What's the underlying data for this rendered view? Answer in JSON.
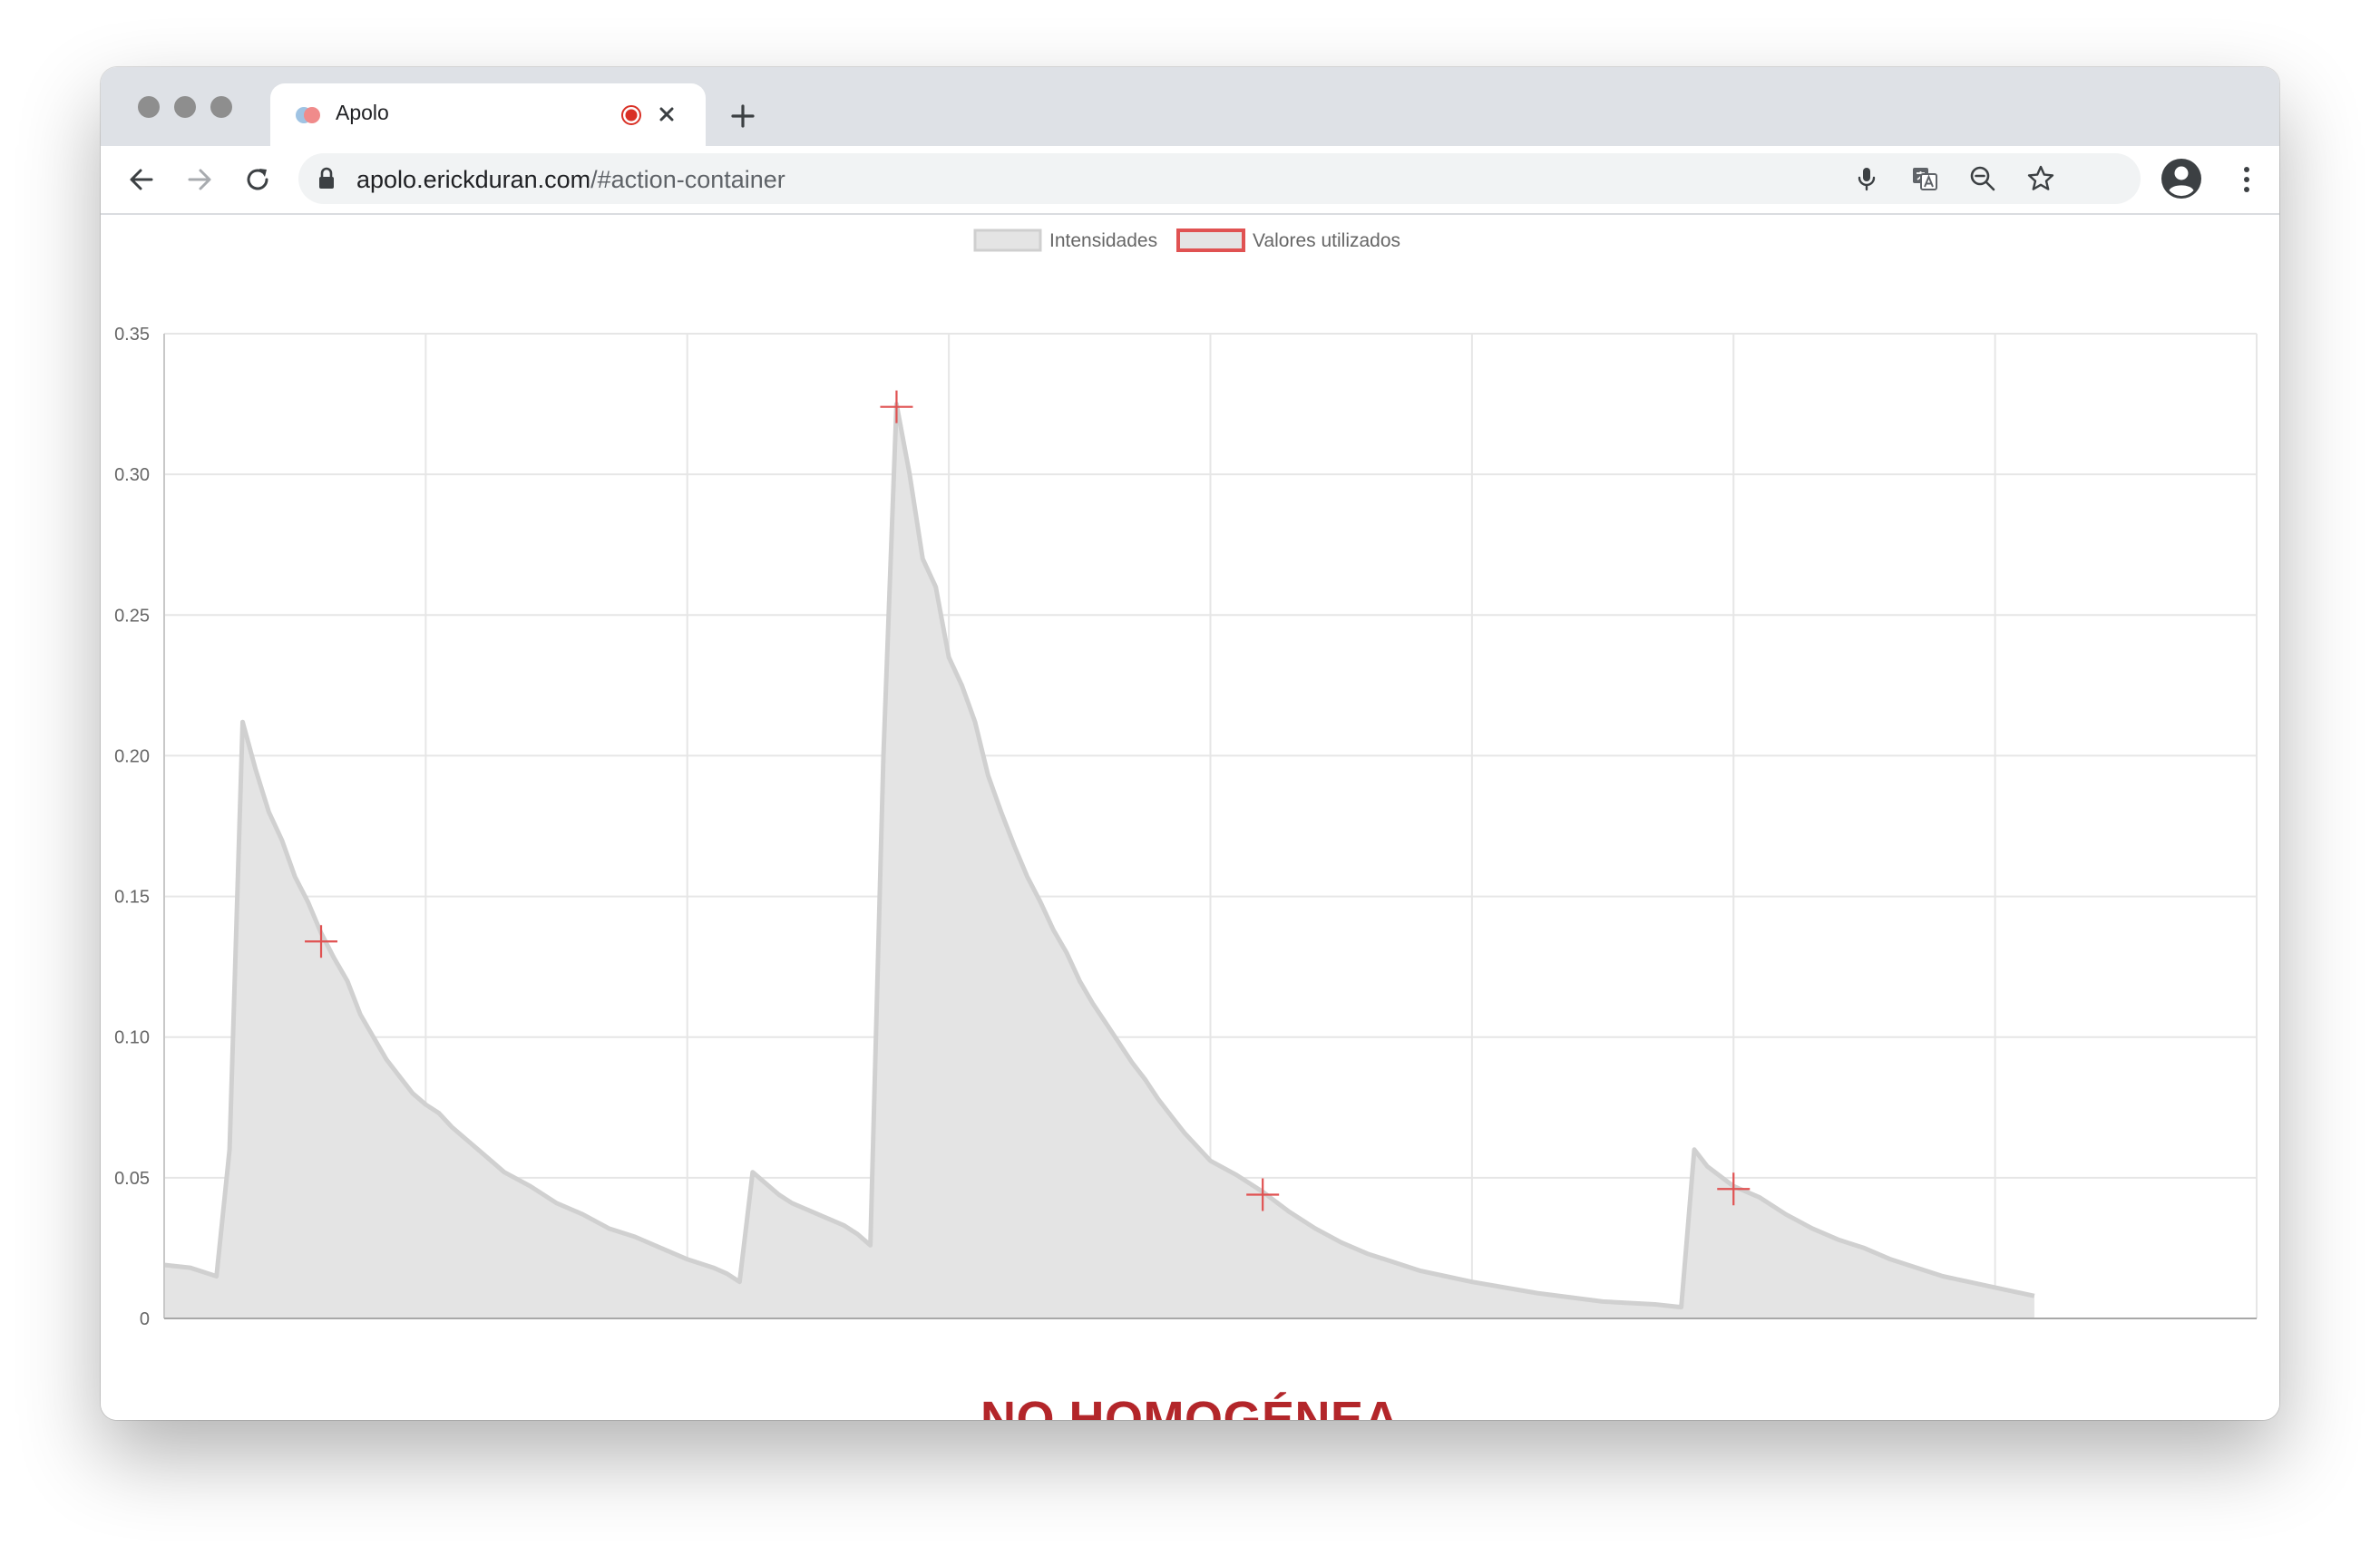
{
  "browser": {
    "tab": {
      "title": "Apolo"
    },
    "address_bar": {
      "host": "apolo.erickduran.com",
      "path": "/#action-container"
    }
  },
  "colors": {
    "accent": "#e05252",
    "area_fill": "#e4e4e4",
    "area_line": "#d0d0d0",
    "verdict": "#b3262a"
  },
  "icons": [
    "back-icon",
    "forward-icon",
    "reload-icon",
    "lock-icon",
    "mic-icon",
    "translate-icon",
    "zoom-out-icon",
    "star-icon",
    "account-icon",
    "menu-icon",
    "record-icon",
    "close-icon",
    "plus-icon"
  ],
  "chart_data": {
    "type": "area",
    "legend": [
      "Intensidades",
      "Valores utilizados"
    ],
    "legend_position": "top",
    "grid": true,
    "xlim": [
      0,
      160
    ],
    "ylim": [
      0,
      0.35
    ],
    "x_ticks": [
      "0",
      "20",
      "40",
      "60",
      "80",
      "100",
      "120",
      "140",
      "160"
    ],
    "y_ticks": [
      "0",
      "0.05",
      "0.10",
      "0.15",
      "0.20",
      "0.25",
      "0.30",
      "0.35"
    ],
    "series": [
      {
        "name": "Intensidades",
        "points": [
          [
            0,
            0.019
          ],
          [
            2,
            0.018
          ],
          [
            4,
            0.015
          ],
          [
            5,
            0.06
          ],
          [
            6,
            0.212
          ],
          [
            7,
            0.195
          ],
          [
            8,
            0.18
          ],
          [
            9,
            0.17
          ],
          [
            10,
            0.157
          ],
          [
            11,
            0.148
          ],
          [
            12,
            0.137
          ],
          [
            13,
            0.128
          ],
          [
            14,
            0.12
          ],
          [
            15,
            0.108
          ],
          [
            16,
            0.1
          ],
          [
            17,
            0.092
          ],
          [
            18,
            0.086
          ],
          [
            19,
            0.08
          ],
          [
            20,
            0.076
          ],
          [
            21,
            0.073
          ],
          [
            22,
            0.068
          ],
          [
            23,
            0.064
          ],
          [
            24,
            0.06
          ],
          [
            25,
            0.056
          ],
          [
            26,
            0.052
          ],
          [
            28,
            0.047
          ],
          [
            30,
            0.041
          ],
          [
            32,
            0.037
          ],
          [
            34,
            0.032
          ],
          [
            36,
            0.029
          ],
          [
            38,
            0.025
          ],
          [
            40,
            0.021
          ],
          [
            42,
            0.018
          ],
          [
            43,
            0.016
          ],
          [
            44,
            0.013
          ],
          [
            45,
            0.052
          ],
          [
            46,
            0.048
          ],
          [
            47,
            0.044
          ],
          [
            48,
            0.041
          ],
          [
            50,
            0.037
          ],
          [
            52,
            0.033
          ],
          [
            53,
            0.03
          ],
          [
            54,
            0.026
          ],
          [
            55,
            0.2
          ],
          [
            56,
            0.325
          ],
          [
            57,
            0.3
          ],
          [
            58,
            0.27
          ],
          [
            59,
            0.26
          ],
          [
            60,
            0.235
          ],
          [
            61,
            0.225
          ],
          [
            62,
            0.212
          ],
          [
            63,
            0.193
          ],
          [
            64,
            0.18
          ],
          [
            65,
            0.168
          ],
          [
            66,
            0.157
          ],
          [
            67,
            0.148
          ],
          [
            68,
            0.138
          ],
          [
            69,
            0.13
          ],
          [
            70,
            0.12
          ],
          [
            71,
            0.112
          ],
          [
            72,
            0.105
          ],
          [
            73,
            0.098
          ],
          [
            74,
            0.091
          ],
          [
            75,
            0.085
          ],
          [
            76,
            0.078
          ],
          [
            77,
            0.072
          ],
          [
            78,
            0.066
          ],
          [
            79,
            0.061
          ],
          [
            80,
            0.056
          ],
          [
            82,
            0.051
          ],
          [
            84,
            0.045
          ],
          [
            86,
            0.038
          ],
          [
            88,
            0.032
          ],
          [
            90,
            0.027
          ],
          [
            92,
            0.023
          ],
          [
            94,
            0.02
          ],
          [
            96,
            0.017
          ],
          [
            98,
            0.015
          ],
          [
            100,
            0.013
          ],
          [
            105,
            0.009
          ],
          [
            110,
            0.006
          ],
          [
            114,
            0.005
          ],
          [
            116,
            0.004
          ],
          [
            117,
            0.06
          ],
          [
            118,
            0.054
          ],
          [
            120,
            0.047
          ],
          [
            122,
            0.043
          ],
          [
            124,
            0.037
          ],
          [
            126,
            0.032
          ],
          [
            128,
            0.028
          ],
          [
            130,
            0.025
          ],
          [
            132,
            0.021
          ],
          [
            134,
            0.018
          ],
          [
            136,
            0.015
          ],
          [
            138,
            0.013
          ],
          [
            140,
            0.011
          ],
          [
            143,
            0.008
          ]
        ]
      },
      {
        "name": "Valores utilizados",
        "points": [
          [
            12,
            0.134
          ],
          [
            56,
            0.324
          ],
          [
            84,
            0.044
          ],
          [
            120,
            0.046
          ]
        ]
      }
    ]
  },
  "result_label": "NO HOMOGÉNEA"
}
